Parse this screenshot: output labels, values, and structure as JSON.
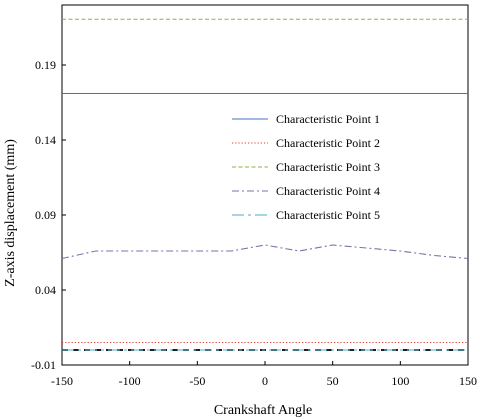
{
  "chart_data": {
    "type": "line",
    "title": "",
    "xlabel": "Crankshaft Angle",
    "ylabel": "Z-axis displacement (mm)",
    "xlim": [
      -150,
      150
    ],
    "ylim": [
      -0.01,
      0.23
    ],
    "xticks": [
      -150,
      -100,
      -50,
      0,
      50,
      100,
      150
    ],
    "xtick_labels": [
      "-150",
      "-100",
      "-50",
      "0",
      "50",
      "100",
      "150"
    ],
    "yticks": [
      -0.01,
      0.04,
      0.09,
      0.14,
      0.19
    ],
    "ytick_labels": [
      "-0.01",
      "0.04",
      "0.09",
      "0.14",
      "0.19"
    ],
    "grid": false,
    "legend_position": "center-right",
    "series": [
      {
        "name": "Characteristic Point 1",
        "color": "#4472C4",
        "style": "solid",
        "x": [
          -150,
          -125,
          -100,
          -75,
          -50,
          -25,
          0,
          25,
          50,
          75,
          100,
          125,
          150
        ],
        "y": [
          0.171,
          0.171,
          0.171,
          0.171,
          0.171,
          0.171,
          0.171,
          0.171,
          0.171,
          0.171,
          0.171,
          0.171,
          0.171
        ]
      },
      {
        "name": "Characteristic Point 2",
        "color": "#E0372C",
        "style": "dotted",
        "x": [
          -150,
          -125,
          -100,
          -75,
          -50,
          -25,
          0,
          25,
          50,
          75,
          100,
          125,
          150
        ],
        "y": [
          0.005,
          0.005,
          0.005,
          0.005,
          0.005,
          0.005,
          0.005,
          0.005,
          0.005,
          0.005,
          0.005,
          0.005,
          0.005
        ]
      },
      {
        "name": "Characteristic Point 3",
        "color": "#8DB33A",
        "style": "dashed",
        "x": [
          -150,
          -125,
          -100,
          -75,
          -50,
          -25,
          0,
          25,
          50,
          75,
          100,
          125,
          150
        ],
        "y": [
          0.2205,
          0.2205,
          0.2205,
          0.2205,
          0.2205,
          0.2205,
          0.2205,
          0.2205,
          0.2205,
          0.2205,
          0.2205,
          0.2205,
          0.2205
        ]
      },
      {
        "name": "Characteristic Point 4",
        "color": "#7E71A8",
        "style": "dashdot",
        "x": [
          -150,
          -125,
          -100,
          -75,
          -50,
          -25,
          0,
          25,
          50,
          75,
          100,
          125,
          150
        ],
        "y": [
          0.061,
          0.066,
          0.066,
          0.066,
          0.066,
          0.066,
          0.07,
          0.066,
          0.07,
          0.068,
          0.066,
          0.063,
          0.061
        ]
      },
      {
        "name": "Characteristic Point 5",
        "color": "#4BACC6",
        "style": "longdashdot",
        "x": [
          -150,
          -125,
          -100,
          -75,
          -50,
          -25,
          0,
          25,
          50,
          75,
          100,
          125,
          150
        ],
        "y": [
          0.0,
          0.0,
          0.0,
          0.0,
          0.0,
          0.0,
          0.0,
          0.0,
          0.0,
          0.0,
          0.0,
          0.0,
          0.0
        ]
      }
    ],
    "baseline": {
      "color": "#000000",
      "style": "dashed",
      "x": [
        -150,
        150
      ],
      "y": [
        0.0,
        0.0
      ]
    }
  }
}
